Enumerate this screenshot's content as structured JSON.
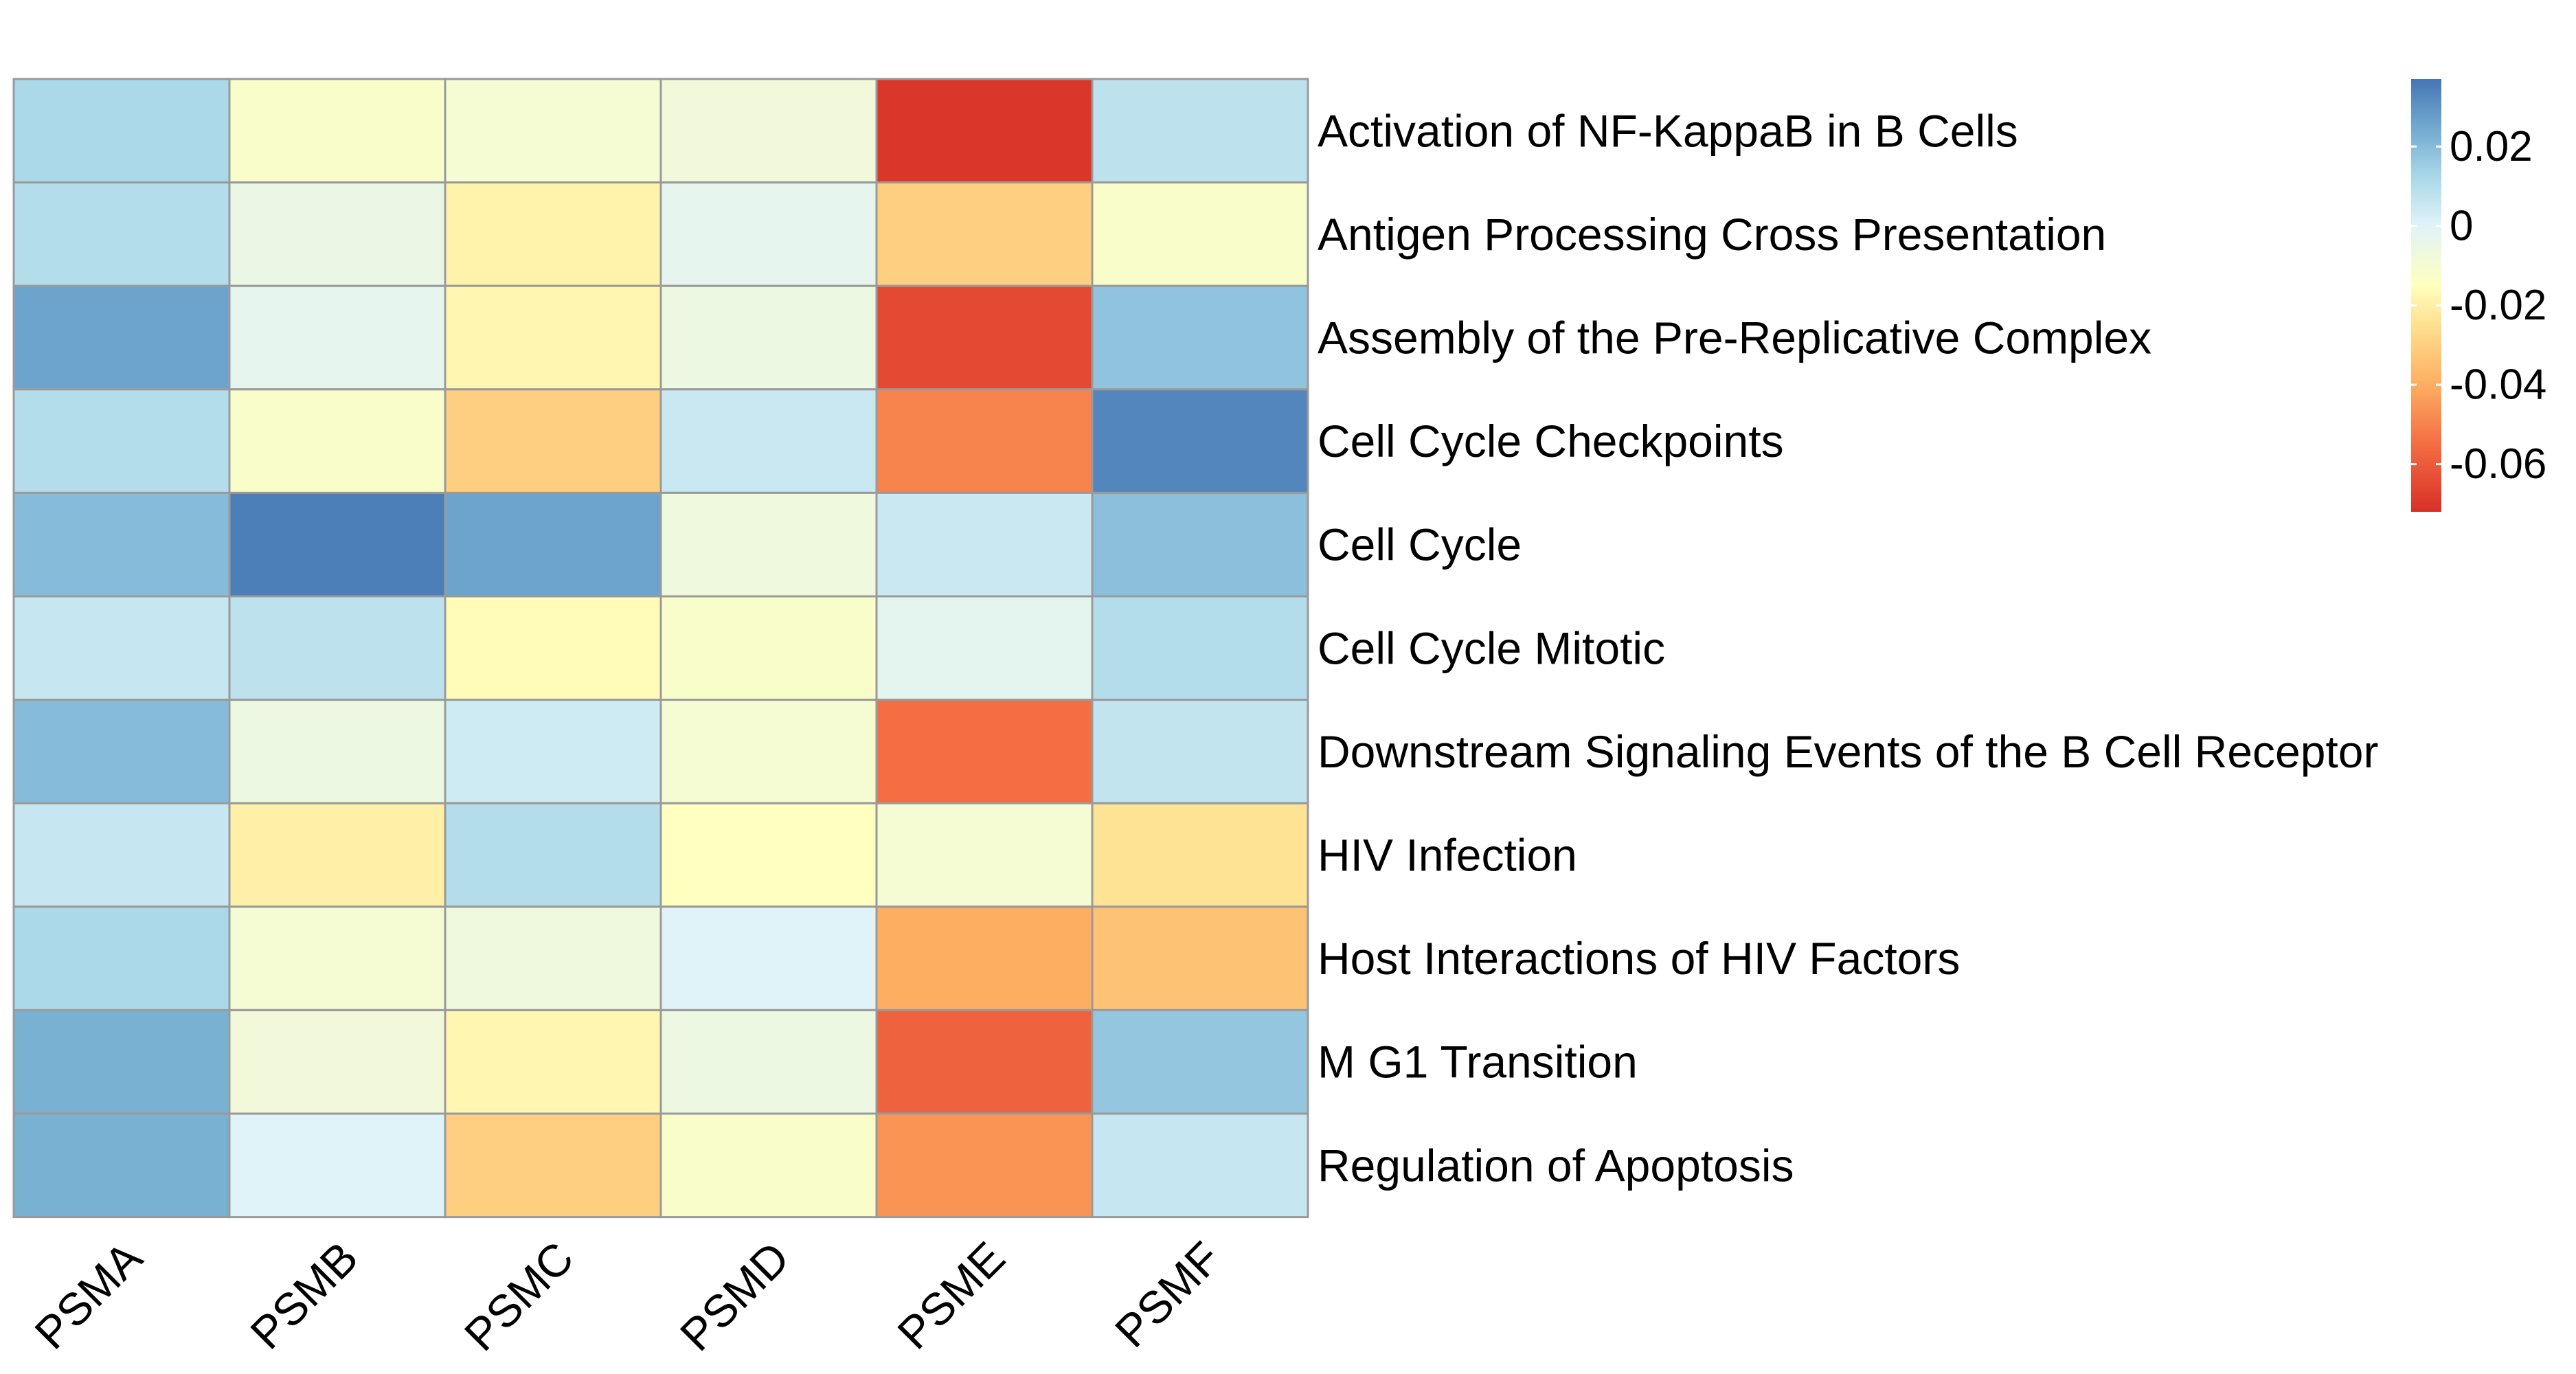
{
  "chart_data": {
    "type": "heatmap",
    "columns": [
      "PSMA",
      "PSMB",
      "PSMC",
      "PSMD",
      "PSME",
      "PSMF"
    ],
    "rows": [
      "Activation of NF-KappaB in B Cells",
      "Antigen Processing Cross Presentation",
      "Assembly of the Pre-Replicative Complex",
      "Cell Cycle Checkpoints",
      "Cell Cycle",
      "Cell Cycle Mitotic",
      "Downstream Signaling Events of the B Cell Receptor",
      "HIV Infection",
      "Host Interactions of HIV Factors",
      "M G1 Transition",
      "Regulation of Apoptosis"
    ],
    "values": [
      [
        0.012,
        -0.012,
        -0.01,
        -0.008,
        -0.07,
        0.008
      ],
      [
        0.01,
        -0.005,
        -0.019,
        -0.003,
        -0.03,
        -0.012
      ],
      [
        0.026,
        -0.003,
        -0.018,
        -0.006,
        -0.065,
        0.018
      ],
      [
        0.01,
        -0.012,
        -0.03,
        0.005,
        -0.05,
        0.033
      ],
      [
        0.02,
        0.035,
        0.026,
        -0.007,
        0.005,
        0.019
      ],
      [
        0.006,
        0.008,
        -0.016,
        -0.012,
        -0.002,
        0.01
      ],
      [
        0.02,
        -0.006,
        0.004,
        -0.01,
        -0.055,
        0.007
      ],
      [
        0.006,
        -0.02,
        0.01,
        -0.015,
        -0.01,
        -0.024
      ],
      [
        0.012,
        -0.01,
        -0.007,
        0.0,
        -0.04,
        -0.034
      ],
      [
        0.023,
        -0.008,
        -0.018,
        -0.006,
        -0.058,
        0.017
      ],
      [
        0.023,
        0.0,
        -0.03,
        -0.012,
        -0.046,
        0.006
      ]
    ],
    "legend": {
      "ticks": [
        0.02,
        0,
        -0.02,
        -0.04,
        -0.06
      ],
      "tick_labels": [
        "0.02",
        "0",
        "-0.02",
        "-0.04",
        "-0.06"
      ],
      "range": [
        -0.072,
        0.037
      ],
      "placement": "right"
    },
    "colormap": {
      "stops": [
        {
          "value": -0.072,
          "color": "#D73027"
        },
        {
          "value": -0.055,
          "color": "#F46D43"
        },
        {
          "value": -0.04,
          "color": "#FDAE61"
        },
        {
          "value": -0.025,
          "color": "#FEE090"
        },
        {
          "value": -0.015,
          "color": "#FFFFBF"
        },
        {
          "value": 0.0,
          "color": "#E0F3F8"
        },
        {
          "value": 0.012,
          "color": "#ABD9E9"
        },
        {
          "value": 0.024,
          "color": "#74ADD1"
        },
        {
          "value": 0.037,
          "color": "#4575B4"
        }
      ]
    },
    "title": "",
    "xlabel": "",
    "ylabel": ""
  }
}
